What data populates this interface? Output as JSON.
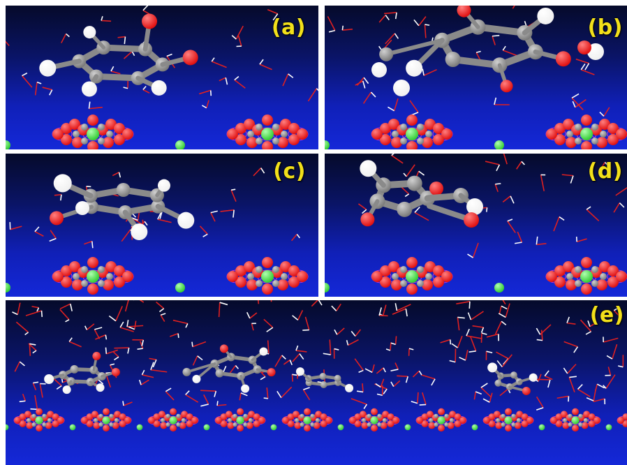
{
  "figure": {
    "panels": [
      {
        "id": "a",
        "label": "(a)",
        "molecule": "ortho-benzoquinone-like ring with two carbonyl oxygens"
      },
      {
        "id": "b",
        "label": "(b)",
        "molecule": "glucose-like ring with hydroxyl groups"
      },
      {
        "id": "c",
        "label": "(c)",
        "molecule": "phenol-like aromatic ring"
      },
      {
        "id": "d",
        "label": "(d)",
        "molecule": "furan-carbonyl molecule"
      },
      {
        "id": "e",
        "label": "(e)",
        "molecule": "mixture of all four molecules above surface"
      }
    ],
    "colors": {
      "carbon": "#7a7a7a",
      "oxygen": "#e01010",
      "hydrogen": "#f0f0f0",
      "metal": "#33cc33",
      "surface_link": "#cc33cc",
      "water_oxygen": "#e02020",
      "water_hydrogen": "#ffffff",
      "label": "#f2e01a"
    }
  }
}
